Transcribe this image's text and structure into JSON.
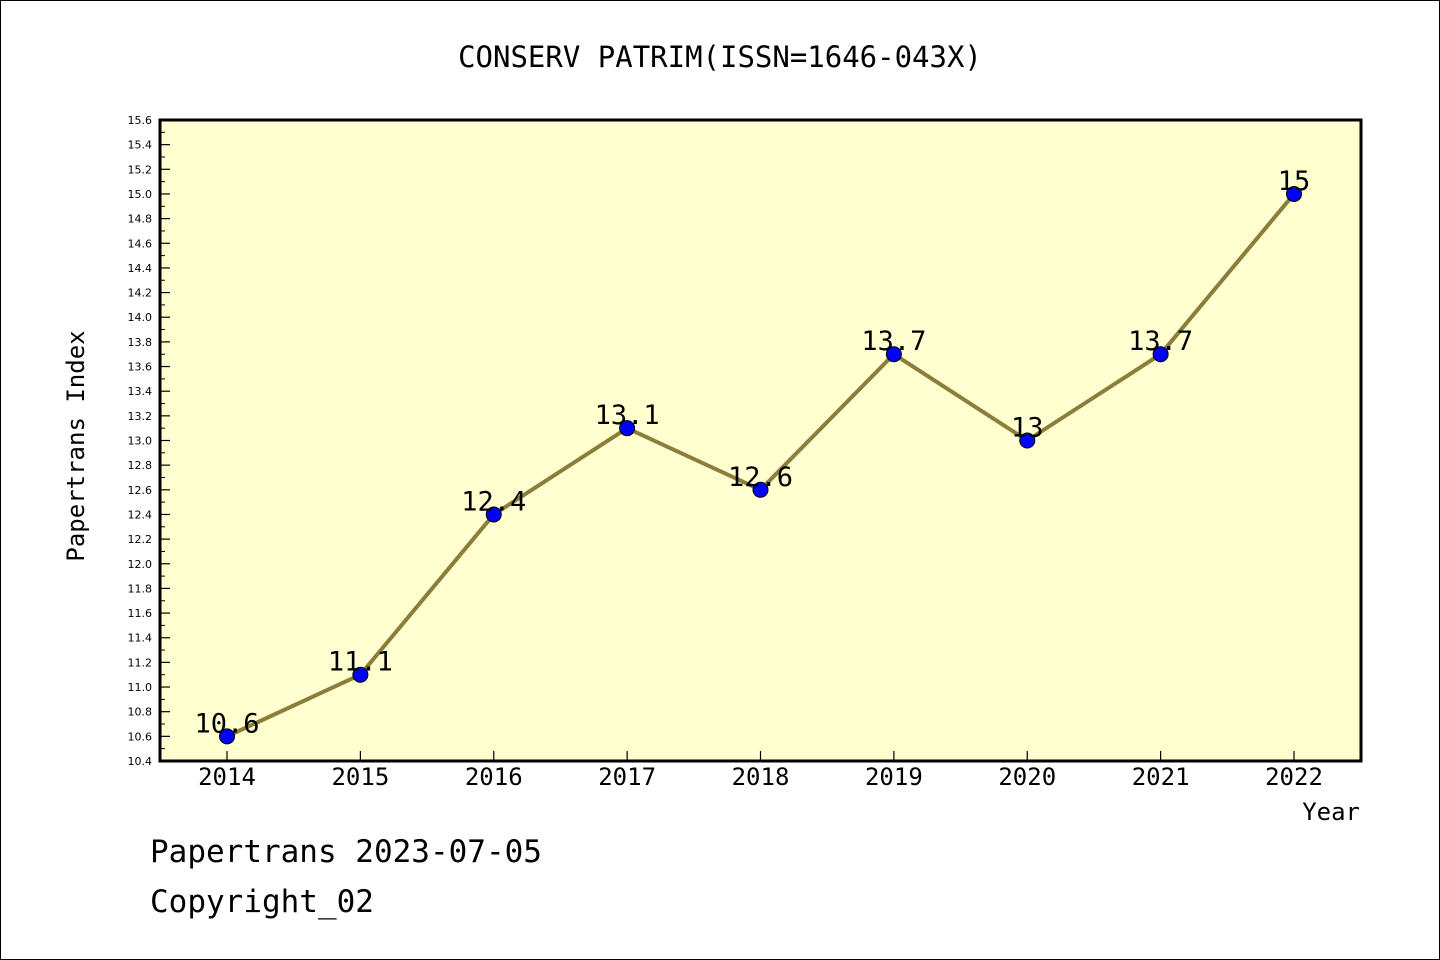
{
  "chart_data": {
    "type": "line",
    "title": "CONSERV PATRIM(ISSN=1646-043X)",
    "xlabel": "Year",
    "ylabel": "Papertrans Index",
    "categories": [
      "2014",
      "2015",
      "2016",
      "2017",
      "2018",
      "2019",
      "2020",
      "2021",
      "2022"
    ],
    "values": [
      10.6,
      11.1,
      12.4,
      13.1,
      12.6,
      13.7,
      13.0,
      13.7,
      15.0
    ],
    "point_labels": [
      "10.6",
      "11.1",
      "12.4",
      "13.1",
      "12.6",
      "13.7",
      "13",
      "13.7",
      "15"
    ],
    "ylim": [
      10.4,
      15.6
    ],
    "yticks": [
      "10.4",
      "10.6",
      "10.8",
      "11.0",
      "11.2",
      "11.4",
      "11.6",
      "11.8",
      "12.0",
      "12.2",
      "12.4",
      "12.6",
      "12.8",
      "13.0",
      "13.2",
      "13.4",
      "13.6",
      "13.8",
      "14.0",
      "14.2",
      "14.4",
      "14.6",
      "14.8",
      "15.0",
      "15.2",
      "15.4",
      "15.6"
    ],
    "grid": false,
    "legend": "none",
    "colors": {
      "plot_background": "#ffffd0",
      "line": "#8b7d3a",
      "marker": "#0000ff"
    }
  },
  "footer": {
    "line1": "Papertrans 2023-07-05",
    "line2": "Copyright_02"
  }
}
